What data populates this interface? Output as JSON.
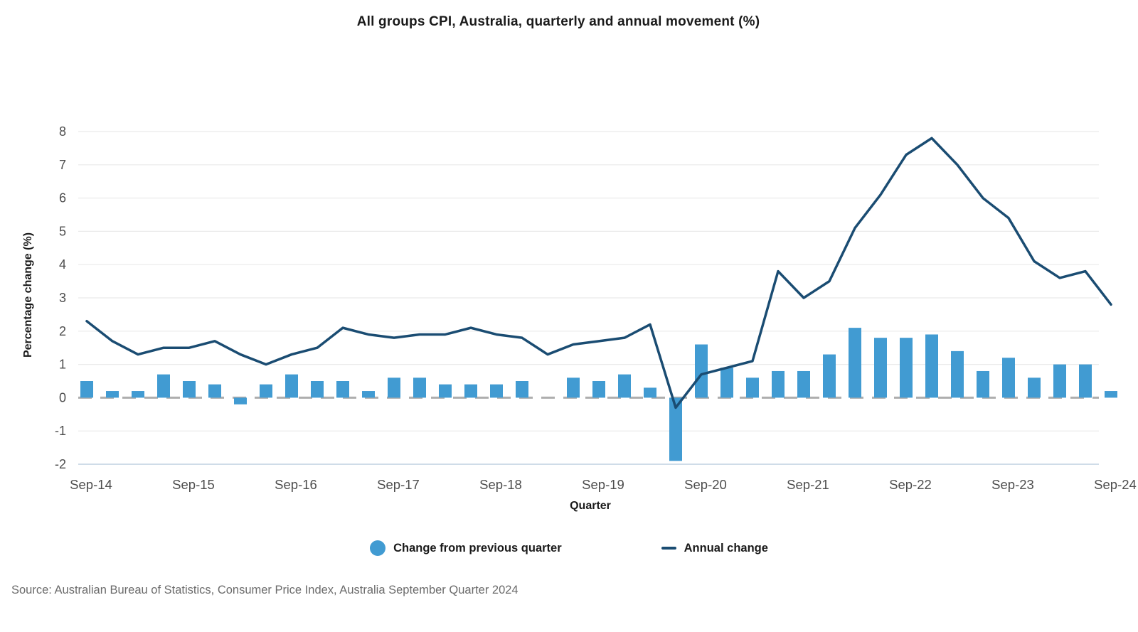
{
  "chart_data": {
    "type": "bar",
    "title": "All groups CPI, Australia, quarterly and annual movement (%)",
    "xlabel": "Quarter",
    "ylabel": "Percentage change (%)",
    "x": [
      "Sep-14",
      "Dec-14",
      "Mar-15",
      "Jun-15",
      "Sep-15",
      "Dec-15",
      "Mar-16",
      "Jun-16",
      "Sep-16",
      "Dec-16",
      "Mar-17",
      "Jun-17",
      "Sep-17",
      "Dec-17",
      "Mar-18",
      "Jun-18",
      "Sep-18",
      "Dec-18",
      "Mar-19",
      "Jun-19",
      "Sep-19",
      "Dec-19",
      "Mar-20",
      "Jun-20",
      "Sep-20",
      "Dec-20",
      "Mar-21",
      "Jun-21",
      "Sep-21",
      "Dec-21",
      "Mar-22",
      "Jun-22",
      "Sep-22",
      "Dec-22",
      "Mar-23",
      "Jun-23",
      "Sep-23",
      "Dec-23",
      "Mar-24",
      "Jun-24",
      "Sep-24"
    ],
    "series": [
      {
        "name": "Change from previous quarter",
        "type": "bar",
        "color": "#419BD2",
        "values": [
          0.5,
          0.2,
          0.2,
          0.7,
          0.5,
          0.4,
          -0.2,
          0.4,
          0.7,
          0.5,
          0.5,
          0.2,
          0.6,
          0.6,
          0.4,
          0.4,
          0.4,
          0.5,
          0.0,
          0.6,
          0.5,
          0.7,
          0.3,
          -1.9,
          1.6,
          0.9,
          0.6,
          0.8,
          0.8,
          1.3,
          2.1,
          1.8,
          1.8,
          1.9,
          1.4,
          0.8,
          1.2,
          0.6,
          1.0,
          1.0,
          0.2
        ]
      },
      {
        "name": "Annual change",
        "type": "line",
        "color": "#1A4C72",
        "values": [
          2.3,
          1.7,
          1.3,
          1.5,
          1.5,
          1.7,
          1.3,
          1.0,
          1.3,
          1.5,
          2.1,
          1.9,
          1.8,
          1.9,
          1.9,
          2.1,
          1.9,
          1.8,
          1.3,
          1.6,
          1.7,
          1.8,
          2.2,
          -0.3,
          0.7,
          0.9,
          1.1,
          3.8,
          3.0,
          3.5,
          5.1,
          6.1,
          7.3,
          7.8,
          7.0,
          6.0,
          5.4,
          4.1,
          3.6,
          3.8,
          2.8
        ]
      }
    ],
    "ylim": [
      -2,
      8
    ],
    "yticks": [
      -2,
      -1,
      0,
      1,
      2,
      3,
      4,
      5,
      6,
      7,
      8
    ],
    "xtick_every": 4,
    "grid": true,
    "zero_line": "dashed",
    "legend_position": "bottom"
  },
  "colors": {
    "gridline": "#EAEAEA",
    "baseline": "#CFDCE8",
    "zero_line": "#AEAEAE",
    "tick_text": "#4D4D4D",
    "heading_text": "#1A1A1A",
    "source_text": "#6B6B6B"
  },
  "source": {
    "text": "Source: Australian Bureau of Statistics, Consumer Price Index, Australia September Quarter 2024"
  }
}
